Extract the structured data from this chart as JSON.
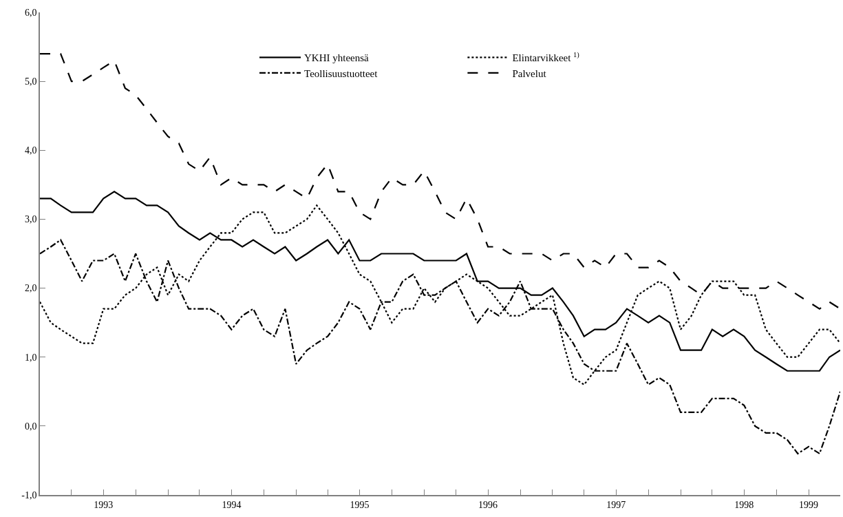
{
  "chart_data": {
    "type": "line",
    "x": [
      "1993-01",
      "1993-02",
      "1993-03",
      "1993-04",
      "1993-05",
      "1993-06",
      "1993-07",
      "1993-08",
      "1993-09",
      "1993-10",
      "1993-11",
      "1993-12",
      "1994-01",
      "1994-02",
      "1994-03",
      "1994-04",
      "1994-05",
      "1994-06",
      "1994-07",
      "1994-08",
      "1994-09",
      "1994-10",
      "1994-11",
      "1994-12",
      "1995-01",
      "1995-02",
      "1995-03",
      "1995-04",
      "1995-05",
      "1995-06",
      "1995-07",
      "1995-08",
      "1995-09",
      "1995-10",
      "1995-11",
      "1995-12",
      "1996-01",
      "1996-02",
      "1996-03",
      "1996-04",
      "1996-05",
      "1996-06",
      "1996-07",
      "1996-08",
      "1996-09",
      "1996-10",
      "1996-11",
      "1996-12",
      "1997-01",
      "1997-02",
      "1997-03",
      "1997-04",
      "1997-05",
      "1997-06",
      "1997-07",
      "1997-08",
      "1997-09",
      "1997-10",
      "1997-11",
      "1997-12",
      "1998-01",
      "1998-02",
      "1998-03",
      "1998-04",
      "1998-05",
      "1998-06",
      "1998-07",
      "1998-08",
      "1998-09",
      "1998-10",
      "1998-11",
      "1998-12",
      "1999-01",
      "1999-02",
      "1999-03",
      "1999-04"
    ],
    "series": [
      {
        "name": "YKHI yhteensä",
        "color": "#000000",
        "line_style": "solid",
        "values": [
          3.3,
          3.3,
          3.2,
          3.1,
          3.1,
          3.1,
          3.3,
          3.4,
          3.3,
          3.3,
          3.2,
          3.2,
          3.1,
          2.9,
          2.8,
          2.7,
          2.8,
          2.7,
          2.7,
          2.6,
          2.7,
          2.6,
          2.5,
          2.6,
          2.4,
          2.5,
          2.6,
          2.7,
          2.5,
          2.7,
          2.4,
          2.4,
          2.5,
          2.5,
          2.5,
          2.5,
          2.4,
          2.4,
          2.4,
          2.4,
          2.5,
          2.1,
          2.1,
          2.0,
          2.0,
          2.0,
          1.9,
          1.9,
          2.0,
          1.8,
          1.6,
          1.3,
          1.4,
          1.4,
          1.5,
          1.7,
          1.6,
          1.5,
          1.6,
          1.5,
          1.1,
          1.1,
          1.1,
          1.4,
          1.3,
          1.4,
          1.3,
          1.1,
          1.0,
          0.9,
          0.8,
          0.8,
          0.8,
          0.8,
          1.0,
          1.1
        ]
      },
      {
        "name": "Elintarvikkeet $^{1)}$",
        "color": "#000000",
        "line_style": "dotted",
        "values": [
          1.8,
          1.5,
          1.4,
          1.3,
          1.2,
          1.2,
          1.7,
          1.7,
          1.9,
          2.0,
          2.2,
          2.3,
          1.9,
          2.2,
          2.1,
          2.4,
          2.6,
          2.8,
          2.8,
          3.0,
          3.1,
          3.1,
          2.8,
          2.8,
          2.9,
          3.0,
          3.2,
          3.0,
          2.8,
          2.5,
          2.2,
          2.1,
          1.8,
          1.5,
          1.7,
          1.7,
          2.0,
          1.8,
          2.0,
          2.1,
          2.2,
          2.1,
          2.0,
          1.8,
          1.6,
          1.6,
          1.7,
          1.8,
          1.9,
          1.2,
          0.7,
          0.6,
          0.8,
          1.0,
          1.1,
          1.5,
          1.9,
          2.0,
          2.1,
          2.0,
          1.4,
          1.6,
          1.9,
          2.1,
          2.1,
          2.1,
          1.9,
          1.9,
          1.4,
          1.2,
          1.0,
          1.0,
          1.2,
          1.4,
          1.4,
          1.2
        ]
      },
      {
        "name": "Teollisuustuotteet",
        "color": "#000000",
        "line_style": "dashdot",
        "values": [
          2.5,
          2.6,
          2.7,
          2.4,
          2.1,
          2.4,
          2.4,
          2.5,
          2.1,
          2.5,
          2.1,
          1.8,
          2.4,
          2.0,
          1.7,
          1.7,
          1.7,
          1.6,
          1.4,
          1.6,
          1.7,
          1.4,
          1.3,
          1.7,
          0.9,
          1.1,
          1.2,
          1.3,
          1.5,
          1.8,
          1.7,
          1.4,
          1.8,
          1.8,
          2.1,
          2.2,
          1.9,
          1.9,
          2.0,
          2.1,
          1.8,
          1.5,
          1.7,
          1.6,
          1.8,
          2.1,
          1.7,
          1.7,
          1.7,
          1.4,
          1.2,
          0.9,
          0.8,
          0.8,
          0.8,
          1.2,
          0.9,
          0.6,
          0.7,
          0.6,
          0.2,
          0.2,
          0.2,
          0.4,
          0.4,
          0.4,
          0.3,
          0.0,
          -0.1,
          -0.1,
          -0.2,
          -0.4,
          -0.3,
          -0.4,
          0.0,
          0.5
        ]
      },
      {
        "name": "Palvelut",
        "color": "#000000",
        "line_style": "longdash",
        "values": [
          5.4,
          5.4,
          5.4,
          5.0,
          5.0,
          5.1,
          5.2,
          5.3,
          4.9,
          4.8,
          4.6,
          4.4,
          4.2,
          4.1,
          3.8,
          3.7,
          3.9,
          3.5,
          3.6,
          3.5,
          3.5,
          3.5,
          3.4,
          3.5,
          3.4,
          3.3,
          3.6,
          3.8,
          3.4,
          3.4,
          3.1,
          3.0,
          3.4,
          3.6,
          3.5,
          3.5,
          3.7,
          3.4,
          3.1,
          3.0,
          3.3,
          3.0,
          2.6,
          2.6,
          2.5,
          2.5,
          2.5,
          2.5,
          2.4,
          2.5,
          2.5,
          2.3,
          2.4,
          2.3,
          2.5,
          2.5,
          2.3,
          2.3,
          2.4,
          2.3,
          2.1,
          2.0,
          1.9,
          2.1,
          2.0,
          2.0,
          2.0,
          2.0,
          2.0,
          2.1,
          2.0,
          1.9,
          1.8,
          1.7,
          1.8,
          1.7
        ]
      }
    ],
    "xlim": [
      "1993-01",
      "1999-04"
    ],
    "xticks": [
      {
        "value": "1993-01",
        "label": null
      },
      {
        "value": "1993-04",
        "label": null
      },
      {
        "value": "1993-07",
        "label": "1993"
      },
      {
        "value": "1993-10",
        "label": null
      },
      {
        "value": "1994-01",
        "label": null
      },
      {
        "value": "1994-04",
        "label": null
      },
      {
        "value": "1994-07",
        "label": "1994"
      },
      {
        "value": "1994-10",
        "label": null
      },
      {
        "value": "1995-01",
        "label": null
      },
      {
        "value": "1995-04",
        "label": null
      },
      {
        "value": "1995-07",
        "label": "1995"
      },
      {
        "value": "1995-10",
        "label": null
      },
      {
        "value": "1996-01",
        "label": null
      },
      {
        "value": "1996-04",
        "label": null
      },
      {
        "value": "1996-07",
        "label": "1996"
      },
      {
        "value": "1996-10",
        "label": null
      },
      {
        "value": "1997-01",
        "label": null
      },
      {
        "value": "1997-04",
        "label": null
      },
      {
        "value": "1997-07",
        "label": "1997"
      },
      {
        "value": "1997-10",
        "label": null
      },
      {
        "value": "1998-01",
        "label": null
      },
      {
        "value": "1998-04",
        "label": null
      },
      {
        "value": "1998-07",
        "label": "1998"
      },
      {
        "value": "1998-10",
        "label": null
      },
      {
        "value": "1999-01",
        "label": "1999"
      },
      {
        "value": "1999-04",
        "label": null
      }
    ],
    "ylim": [
      -1.0,
      6.0
    ],
    "yticks": [
      {
        "value": -1.0,
        "label": "-1,0"
      },
      {
        "value": 0.0,
        "label": "0,0"
      },
      {
        "value": 1.0,
        "label": "1,0"
      },
      {
        "value": 2.0,
        "label": "2,0"
      },
      {
        "value": 3.0,
        "label": "3,0"
      },
      {
        "value": 4.0,
        "label": "4,0"
      },
      {
        "value": 5.0,
        "label": "5,0"
      },
      {
        "value": 6.0,
        "label": "6,0"
      }
    ],
    "legend": "top",
    "marker": "none"
  }
}
